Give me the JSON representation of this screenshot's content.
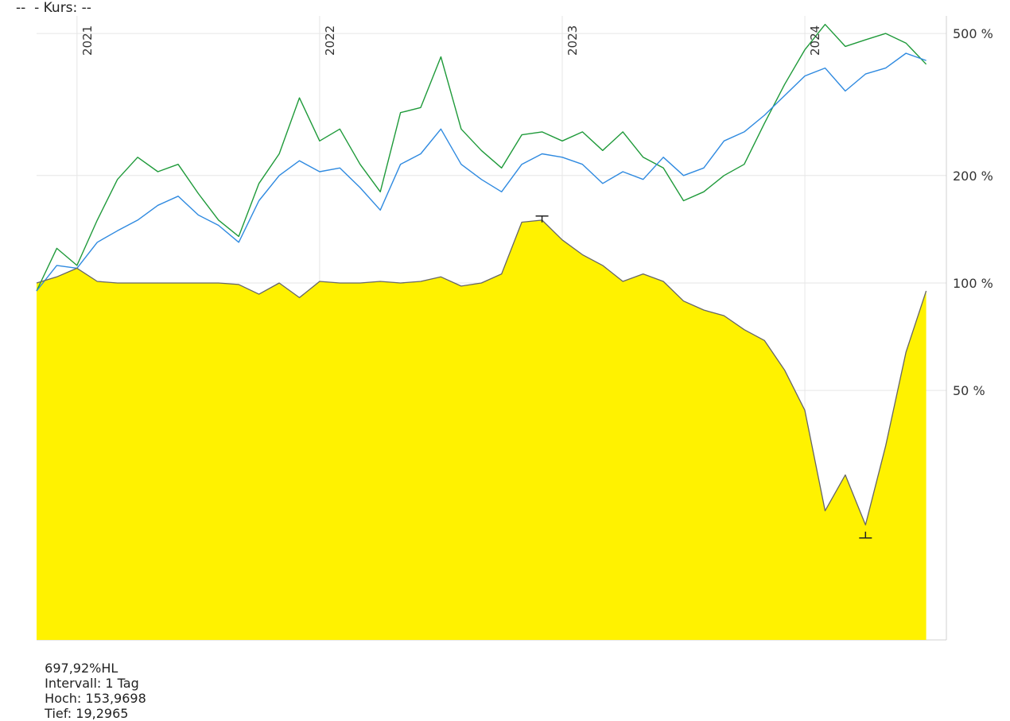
{
  "header": {
    "text": "--  - Kurs: --"
  },
  "footer": {
    "value": "697,92%HL",
    "interval": "Intervall: 1 Tag",
    "high": "Hoch: 153,9698",
    "low": "Tief: 19,2965"
  },
  "chart_data": {
    "type": "line",
    "yscale": "log",
    "ylim_percent": [
      10,
      560
    ],
    "xlim": [
      "2020-11",
      "2024-08"
    ],
    "x_ticks": [
      "2021",
      "2022",
      "2023",
      "2024"
    ],
    "y_ticks": [
      "500 %",
      "200 %",
      "100 %",
      "50 %"
    ],
    "grid": true,
    "colors": {
      "green": "#1f9a3a",
      "blue": "#2f8ae0",
      "area_fill": "#fff200",
      "area_line": "#666666"
    },
    "series": [
      {
        "color": "green",
        "points": [
          [
            "2020-11",
            95
          ],
          [
            "2020-12",
            125
          ],
          [
            "2021-01",
            112
          ],
          [
            "2021-02",
            150
          ],
          [
            "2021-03",
            195
          ],
          [
            "2021-04",
            225
          ],
          [
            "2021-05",
            205
          ],
          [
            "2021-06",
            215
          ],
          [
            "2021-07",
            178
          ],
          [
            "2021-08",
            150
          ],
          [
            "2021-09",
            135
          ],
          [
            "2021-10",
            190
          ],
          [
            "2021-11",
            230
          ],
          [
            "2021-12",
            330
          ],
          [
            "2022-01",
            250
          ],
          [
            "2022-02",
            270
          ],
          [
            "2022-03",
            215
          ],
          [
            "2022-04",
            180
          ],
          [
            "2022-05",
            300
          ],
          [
            "2022-06",
            310
          ],
          [
            "2022-07",
            430
          ],
          [
            "2022-08",
            270
          ],
          [
            "2022-09",
            235
          ],
          [
            "2022-10",
            210
          ],
          [
            "2022-11",
            260
          ],
          [
            "2022-12",
            265
          ],
          [
            "2023-01",
            250
          ],
          [
            "2023-02",
            265
          ],
          [
            "2023-03",
            235
          ],
          [
            "2023-04",
            265
          ],
          [
            "2023-05",
            225
          ],
          [
            "2023-06",
            210
          ],
          [
            "2023-07",
            170
          ],
          [
            "2023-08",
            180
          ],
          [
            "2023-09",
            200
          ],
          [
            "2023-10",
            215
          ],
          [
            "2023-11",
            280
          ],
          [
            "2023-12",
            360
          ],
          [
            "2024-01",
            450
          ],
          [
            "2024-02",
            530
          ],
          [
            "2024-03",
            460
          ],
          [
            "2024-04",
            480
          ],
          [
            "2024-05",
            500
          ],
          [
            "2024-06",
            470
          ],
          [
            "2024-07",
            410
          ]
        ]
      },
      {
        "color": "blue",
        "points": [
          [
            "2020-11",
            95
          ],
          [
            "2020-12",
            112
          ],
          [
            "2021-01",
            110
          ],
          [
            "2021-02",
            130
          ],
          [
            "2021-03",
            140
          ],
          [
            "2021-04",
            150
          ],
          [
            "2021-05",
            165
          ],
          [
            "2021-06",
            175
          ],
          [
            "2021-07",
            155
          ],
          [
            "2021-08",
            145
          ],
          [
            "2021-09",
            130
          ],
          [
            "2021-10",
            170
          ],
          [
            "2021-11",
            200
          ],
          [
            "2021-12",
            220
          ],
          [
            "2022-01",
            205
          ],
          [
            "2022-02",
            210
          ],
          [
            "2022-03",
            185
          ],
          [
            "2022-04",
            160
          ],
          [
            "2022-05",
            215
          ],
          [
            "2022-06",
            230
          ],
          [
            "2022-07",
            270
          ],
          [
            "2022-08",
            215
          ],
          [
            "2022-09",
            195
          ],
          [
            "2022-10",
            180
          ],
          [
            "2022-11",
            215
          ],
          [
            "2022-12",
            230
          ],
          [
            "2023-01",
            225
          ],
          [
            "2023-02",
            215
          ],
          [
            "2023-03",
            190
          ],
          [
            "2023-04",
            205
          ],
          [
            "2023-05",
            195
          ],
          [
            "2023-06",
            225
          ],
          [
            "2023-07",
            200
          ],
          [
            "2023-08",
            210
          ],
          [
            "2023-09",
            250
          ],
          [
            "2023-10",
            265
          ],
          [
            "2023-11",
            295
          ],
          [
            "2023-12",
            335
          ],
          [
            "2024-01",
            380
          ],
          [
            "2024-02",
            400
          ],
          [
            "2024-03",
            345
          ],
          [
            "2024-04",
            385
          ],
          [
            "2024-05",
            400
          ],
          [
            "2024-06",
            440
          ],
          [
            "2024-07",
            420
          ]
        ]
      },
      {
        "color": "area_line",
        "filled": true,
        "points": [
          [
            "2020-11",
            100
          ],
          [
            "2020-12",
            104
          ],
          [
            "2021-01",
            110
          ],
          [
            "2021-02",
            101
          ],
          [
            "2021-03",
            100
          ],
          [
            "2021-04",
            100
          ],
          [
            "2021-05",
            100
          ],
          [
            "2021-06",
            100
          ],
          [
            "2021-07",
            100
          ],
          [
            "2021-08",
            100
          ],
          [
            "2021-09",
            99
          ],
          [
            "2021-10",
            93
          ],
          [
            "2021-11",
            100
          ],
          [
            "2021-12",
            91
          ],
          [
            "2022-01",
            101
          ],
          [
            "2022-02",
            100
          ],
          [
            "2022-03",
            100
          ],
          [
            "2022-04",
            101
          ],
          [
            "2022-05",
            100
          ],
          [
            "2022-06",
            101
          ],
          [
            "2022-07",
            104
          ],
          [
            "2022-08",
            98
          ],
          [
            "2022-09",
            100
          ],
          [
            "2022-10",
            106
          ],
          [
            "2022-11",
            148
          ],
          [
            "2022-12",
            150
          ],
          [
            "2023-01",
            132
          ],
          [
            "2023-02",
            120
          ],
          [
            "2023-03",
            112
          ],
          [
            "2023-04",
            101
          ],
          [
            "2023-05",
            106
          ],
          [
            "2023-06",
            101
          ],
          [
            "2023-07",
            89
          ],
          [
            "2023-08",
            84
          ],
          [
            "2023-09",
            81
          ],
          [
            "2023-10",
            74
          ],
          [
            "2023-11",
            69
          ],
          [
            "2023-12",
            57
          ],
          [
            "2024-01",
            44
          ],
          [
            "2024-02",
            23
          ],
          [
            "2024-03",
            29
          ],
          [
            "2024-04",
            21
          ],
          [
            "2024-05",
            35
          ],
          [
            "2024-06",
            64
          ],
          [
            "2024-07",
            95
          ]
        ]
      }
    ],
    "annotations": [
      {
        "type": "high-marker",
        "x": "2022-12",
        "y": 153.9698
      },
      {
        "type": "low-marker",
        "x": "2024-04",
        "y": 19.2965
      }
    ]
  }
}
